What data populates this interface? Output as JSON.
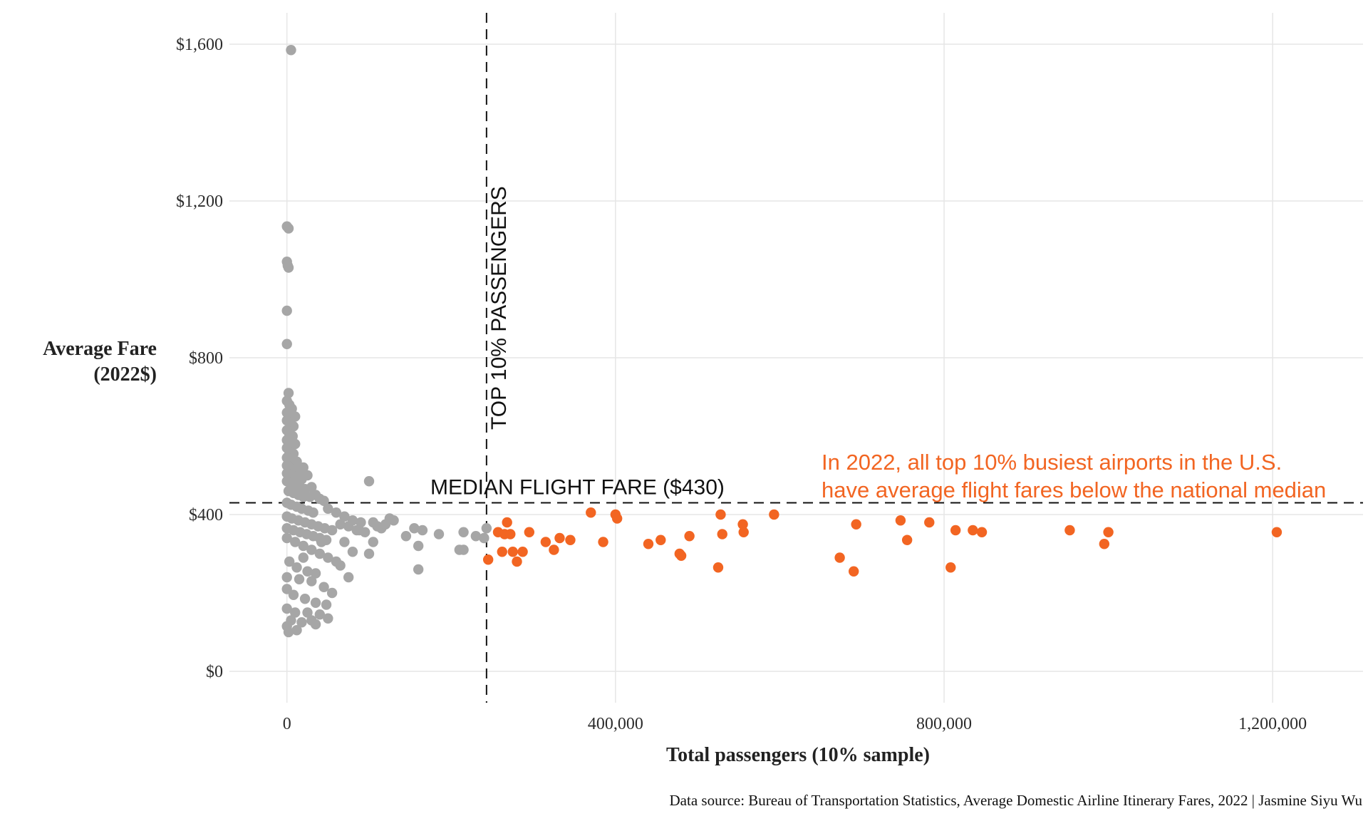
{
  "chart_data": {
    "type": "scatter",
    "xlabel": "Total passengers (10% sample)",
    "ylabel_lines": [
      "Average Fare",
      "(2022$)"
    ],
    "xlim": [
      -70000,
      1310000
    ],
    "ylim": [
      -80,
      1680
    ],
    "x_ticks": [
      0,
      400000,
      800000,
      1200000
    ],
    "x_tick_labels": [
      "0",
      "400,000",
      "800,000",
      "1,200,000"
    ],
    "y_ticks": [
      0,
      400,
      800,
      1200,
      1600
    ],
    "y_tick_labels": [
      "$0",
      "$400",
      "$800",
      "$1,200",
      "$1,600"
    ],
    "grid": true,
    "median_fare": 430,
    "median_label": "MEDIAN FLIGHT FARE ($430)",
    "top10_threshold": 243000,
    "top10_label": "TOP 10% PASSENGERS",
    "annotation_lines": [
      "In 2022, all top 10% busiest airports in the U.S.",
      "have average flight fares below the national median"
    ],
    "caption": "Data source: Bureau of Transportation Statistics, Average Domestic Airline Itinerary Fares, 2022 | Jasmine Siyu Wu",
    "colors": {
      "other": "#a6a6a6",
      "top10": "#f26522",
      "annotation": "#f26522",
      "grid": "#e6e6e6"
    },
    "series": [
      {
        "group": "other",
        "points": [
          [
            5000,
            1585
          ],
          [
            0,
            1135
          ],
          [
            2000,
            1130
          ],
          [
            0,
            1045
          ],
          [
            1000,
            1035
          ],
          [
            2000,
            1030
          ],
          [
            0,
            920
          ],
          [
            0,
            835
          ],
          [
            2000,
            710
          ],
          [
            0,
            690
          ],
          [
            3000,
            680
          ],
          [
            6000,
            670
          ],
          [
            0,
            660
          ],
          [
            5000,
            655
          ],
          [
            10000,
            650
          ],
          [
            0,
            640
          ],
          [
            4000,
            635
          ],
          [
            8000,
            625
          ],
          [
            0,
            615
          ],
          [
            3000,
            605
          ],
          [
            7000,
            600
          ],
          [
            0,
            590
          ],
          [
            5000,
            585
          ],
          [
            10000,
            580
          ],
          [
            0,
            570
          ],
          [
            3000,
            560
          ],
          [
            8000,
            555
          ],
          [
            0,
            545
          ],
          [
            5000,
            540
          ],
          [
            12000,
            535
          ],
          [
            0,
            525
          ],
          [
            3000,
            520
          ],
          [
            9000,
            515
          ],
          [
            15000,
            510
          ],
          [
            20000,
            520
          ],
          [
            0,
            505
          ],
          [
            6000,
            500
          ],
          [
            12000,
            495
          ],
          [
            18000,
            490
          ],
          [
            25000,
            500
          ],
          [
            0,
            485
          ],
          [
            4000,
            480
          ],
          [
            10000,
            475
          ],
          [
            16000,
            470
          ],
          [
            22000,
            465
          ],
          [
            30000,
            470
          ],
          [
            2000,
            460
          ],
          [
            8000,
            455
          ],
          [
            14000,
            450
          ],
          [
            20000,
            445
          ],
          [
            28000,
            445
          ],
          [
            35000,
            450
          ],
          [
            40000,
            440
          ],
          [
            45000,
            435
          ],
          [
            0,
            430
          ],
          [
            5000,
            425
          ],
          [
            12000,
            420
          ],
          [
            18000,
            415
          ],
          [
            26000,
            410
          ],
          [
            32000,
            405
          ],
          [
            50000,
            415
          ],
          [
            60000,
            405
          ],
          [
            70000,
            395
          ],
          [
            80000,
            385
          ],
          [
            90000,
            380
          ],
          [
            100000,
            485
          ],
          [
            0,
            395
          ],
          [
            6000,
            390
          ],
          [
            14000,
            385
          ],
          [
            22000,
            380
          ],
          [
            30000,
            375
          ],
          [
            38000,
            370
          ],
          [
            46000,
            365
          ],
          [
            55000,
            360
          ],
          [
            65000,
            375
          ],
          [
            75000,
            370
          ],
          [
            85000,
            360
          ],
          [
            95000,
            355
          ],
          [
            105000,
            380
          ],
          [
            110000,
            370
          ],
          [
            115000,
            365
          ],
          [
            120000,
            375
          ],
          [
            125000,
            390
          ],
          [
            130000,
            385
          ],
          [
            0,
            365
          ],
          [
            8000,
            360
          ],
          [
            16000,
            355
          ],
          [
            24000,
            350
          ],
          [
            32000,
            345
          ],
          [
            40000,
            340
          ],
          [
            48000,
            335
          ],
          [
            0,
            340
          ],
          [
            10000,
            330
          ],
          [
            20000,
            320
          ],
          [
            30000,
            310
          ],
          [
            40000,
            300
          ],
          [
            50000,
            290
          ],
          [
            60000,
            280
          ],
          [
            80000,
            305
          ],
          [
            100000,
            300
          ],
          [
            105000,
            330
          ],
          [
            65000,
            270
          ],
          [
            3000,
            280
          ],
          [
            12000,
            265
          ],
          [
            25000,
            255
          ],
          [
            35000,
            250
          ],
          [
            0,
            240
          ],
          [
            15000,
            235
          ],
          [
            30000,
            230
          ],
          [
            45000,
            215
          ],
          [
            55000,
            200
          ],
          [
            0,
            210
          ],
          [
            8000,
            195
          ],
          [
            22000,
            185
          ],
          [
            35000,
            175
          ],
          [
            48000,
            170
          ],
          [
            0,
            160
          ],
          [
            10000,
            150
          ],
          [
            25000,
            150
          ],
          [
            40000,
            145
          ],
          [
            50000,
            135
          ],
          [
            5000,
            130
          ],
          [
            18000,
            125
          ],
          [
            30000,
            130
          ],
          [
            0,
            115
          ],
          [
            12000,
            105
          ],
          [
            2000,
            100
          ],
          [
            35000,
            120
          ],
          [
            75000,
            240
          ],
          [
            20000,
            290
          ],
          [
            42000,
            330
          ],
          [
            70000,
            330
          ],
          [
            88000,
            360
          ],
          [
            145000,
            345
          ],
          [
            155000,
            365
          ],
          [
            165000,
            360
          ],
          [
            160000,
            320
          ],
          [
            160000,
            260
          ],
          [
            185000,
            350
          ],
          [
            210000,
            310
          ],
          [
            215000,
            310
          ],
          [
            215000,
            355
          ],
          [
            230000,
            345
          ],
          [
            240000,
            340
          ],
          [
            243000,
            365
          ]
        ]
      },
      {
        "group": "top10",
        "points": [
          [
            245000,
            285
          ],
          [
            257000,
            355
          ],
          [
            262000,
            305
          ],
          [
            265000,
            350
          ],
          [
            268000,
            380
          ],
          [
            272000,
            350
          ],
          [
            275000,
            305
          ],
          [
            280000,
            280
          ],
          [
            287000,
            305
          ],
          [
            295000,
            355
          ],
          [
            315000,
            330
          ],
          [
            325000,
            310
          ],
          [
            332000,
            340
          ],
          [
            345000,
            335
          ],
          [
            370000,
            405
          ],
          [
            385000,
            330
          ],
          [
            400000,
            400
          ],
          [
            402000,
            390
          ],
          [
            440000,
            325
          ],
          [
            455000,
            335
          ],
          [
            478000,
            300
          ],
          [
            480000,
            295
          ],
          [
            490000,
            345
          ],
          [
            525000,
            265
          ],
          [
            528000,
            400
          ],
          [
            530000,
            350
          ],
          [
            555000,
            375
          ],
          [
            556000,
            355
          ],
          [
            593000,
            400
          ],
          [
            673000,
            290
          ],
          [
            690000,
            255
          ],
          [
            693000,
            375
          ],
          [
            747000,
            385
          ],
          [
            755000,
            335
          ],
          [
            782000,
            380
          ],
          [
            808000,
            265
          ],
          [
            814000,
            360
          ],
          [
            835000,
            360
          ],
          [
            846000,
            355
          ],
          [
            953000,
            360
          ],
          [
            995000,
            325
          ],
          [
            1000000,
            355
          ],
          [
            1205000,
            355
          ]
        ]
      }
    ]
  }
}
